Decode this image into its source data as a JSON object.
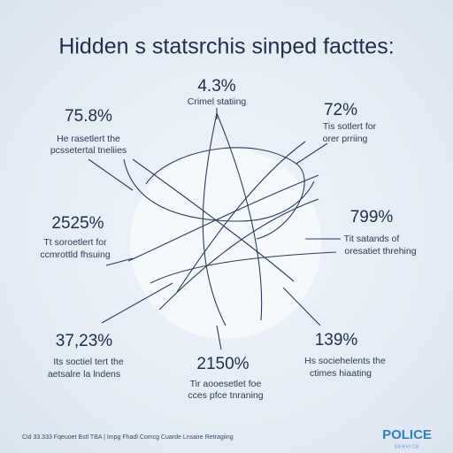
{
  "title": "Hidden s statsrchis sinped facttes:",
  "stats": [
    {
      "value": "4.3%",
      "lines": [
        "Crimel statiing"
      ]
    },
    {
      "value": "75.8%",
      "lines": [
        "He rasetlert the",
        "pcssetertal tneliies"
      ]
    },
    {
      "value": "72%",
      "lines": [
        "Tis sotlert for",
        "orer prriing"
      ]
    },
    {
      "value": "2525%",
      "lines": [
        "Tt soroetlert for",
        "ccmrottld fhsuing"
      ]
    },
    {
      "value": "799%",
      "lines": [
        "Tit satands of",
        "oresatiet threhing"
      ]
    },
    {
      "value": "37,23%",
      "lines": [
        "Its soctiel tert the",
        "aetsalre la lndens"
      ]
    },
    {
      "value": "139%",
      "lines": [
        "Hs sociehelents the",
        "ctimes hiaating"
      ]
    },
    {
      "value": "2150%",
      "lines": [
        "Tir aooesetlet foe",
        "cces pfce tnraning"
      ]
    }
  ],
  "footer": "Cid 33.333 Fqeuoet Bstl TBA | Impg Fhadl Comcg Cuarde Lnsaire Retragiing",
  "logo": {
    "title": "POLICE",
    "subtitle": "SERVICE"
  }
}
